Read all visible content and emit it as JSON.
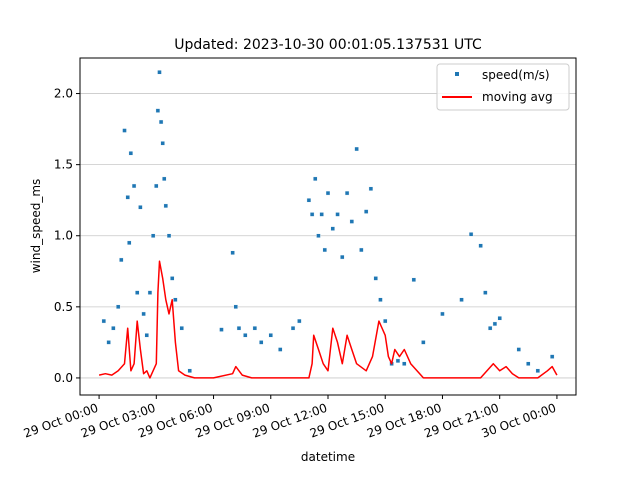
{
  "chart_data": {
    "type": "scatter",
    "title": "Updated: 2023-10-30 00:01:05.137531 UTC",
    "xlabel": "datetime",
    "ylabel": "wind_speed_ms",
    "xlim": [
      "2023-10-28T23:00:00",
      "2023-10-30T01:00:00"
    ],
    "ylim": [
      -0.12,
      2.25
    ],
    "grid": "y",
    "legend_position": "top-right",
    "x_ticks": [
      {
        "t": "2023-10-29T00:00:00",
        "label": "29 Oct 00:00"
      },
      {
        "t": "2023-10-29T03:00:00",
        "label": "29 Oct 03:00"
      },
      {
        "t": "2023-10-29T06:00:00",
        "label": "29 Oct 06:00"
      },
      {
        "t": "2023-10-29T09:00:00",
        "label": "29 Oct 09:00"
      },
      {
        "t": "2023-10-29T12:00:00",
        "label": "29 Oct 12:00"
      },
      {
        "t": "2023-10-29T15:00:00",
        "label": "29 Oct 15:00"
      },
      {
        "t": "2023-10-29T18:00:00",
        "label": "29 Oct 18:00"
      },
      {
        "t": "2023-10-29T21:00:00",
        "label": "29 Oct 21:00"
      },
      {
        "t": "2023-10-30T00:00:00",
        "label": "30 Oct 00:00"
      }
    ],
    "y_ticks": [
      {
        "v": 0.0,
        "label": "0.0"
      },
      {
        "v": 0.5,
        "label": "0.5"
      },
      {
        "v": 1.0,
        "label": "1.0"
      },
      {
        "v": 1.5,
        "label": "1.5"
      },
      {
        "v": 2.0,
        "label": "2.0"
      }
    ],
    "series": [
      {
        "name": "speed(m/s)",
        "kind": "scatter",
        "color": "#1f77b4",
        "x": [
          "2023-10-29T00:15:00",
          "2023-10-29T00:30:00",
          "2023-10-29T00:45:00",
          "2023-10-29T01:00:00",
          "2023-10-29T01:10:00",
          "2023-10-29T01:20:00",
          "2023-10-29T01:30:00",
          "2023-10-29T01:35:00",
          "2023-10-29T01:40:00",
          "2023-10-29T01:50:00",
          "2023-10-29T02:00:00",
          "2023-10-29T02:10:00",
          "2023-10-29T02:20:00",
          "2023-10-29T02:30:00",
          "2023-10-29T02:40:00",
          "2023-10-29T02:50:00",
          "2023-10-29T03:00:00",
          "2023-10-29T03:05:00",
          "2023-10-29T03:10:00",
          "2023-10-29T03:15:00",
          "2023-10-29T03:20:00",
          "2023-10-29T03:25:00",
          "2023-10-29T03:30:00",
          "2023-10-29T03:40:00",
          "2023-10-29T03:50:00",
          "2023-10-29T04:00:00",
          "2023-10-29T04:20:00",
          "2023-10-29T04:45:00",
          "2023-10-29T06:25:00",
          "2023-10-29T07:00:00",
          "2023-10-29T07:10:00",
          "2023-10-29T07:20:00",
          "2023-10-29T07:40:00",
          "2023-10-29T08:10:00",
          "2023-10-29T08:30:00",
          "2023-10-29T09:00:00",
          "2023-10-29T09:30:00",
          "2023-10-29T10:10:00",
          "2023-10-29T10:30:00",
          "2023-10-29T11:00:00",
          "2023-10-29T11:10:00",
          "2023-10-29T11:20:00",
          "2023-10-29T11:30:00",
          "2023-10-29T11:40:00",
          "2023-10-29T11:50:00",
          "2023-10-29T12:00:00",
          "2023-10-29T12:15:00",
          "2023-10-29T12:30:00",
          "2023-10-29T12:45:00",
          "2023-10-29T13:00:00",
          "2023-10-29T13:15:00",
          "2023-10-29T13:30:00",
          "2023-10-29T13:45:00",
          "2023-10-29T14:00:00",
          "2023-10-29T14:15:00",
          "2023-10-29T14:30:00",
          "2023-10-29T14:45:00",
          "2023-10-29T15:00:00",
          "2023-10-29T15:20:00",
          "2023-10-29T15:40:00",
          "2023-10-29T16:00:00",
          "2023-10-29T16:30:00",
          "2023-10-29T17:00:00",
          "2023-10-29T18:00:00",
          "2023-10-29T19:00:00",
          "2023-10-29T19:30:00",
          "2023-10-29T20:00:00",
          "2023-10-29T20:15:00",
          "2023-10-29T20:30:00",
          "2023-10-29T20:45:00",
          "2023-10-29T21:00:00",
          "2023-10-29T22:00:00",
          "2023-10-29T22:30:00",
          "2023-10-29T23:00:00",
          "2023-10-29T23:45:00"
        ],
        "y": [
          0.4,
          0.25,
          0.35,
          0.5,
          0.83,
          1.74,
          1.27,
          0.95,
          1.58,
          1.35,
          0.6,
          1.2,
          0.45,
          0.3,
          0.6,
          1.0,
          1.35,
          1.88,
          2.15,
          1.8,
          1.65,
          1.4,
          1.21,
          1.0,
          0.7,
          0.55,
          0.35,
          0.05,
          0.34,
          0.88,
          0.5,
          0.35,
          0.3,
          0.35,
          0.25,
          0.3,
          0.2,
          0.35,
          0.4,
          1.25,
          1.15,
          1.4,
          1.0,
          1.15,
          0.9,
          1.3,
          1.05,
          1.15,
          0.85,
          1.3,
          1.1,
          1.61,
          0.9,
          1.17,
          1.33,
          0.7,
          0.55,
          0.4,
          0.1,
          0.12,
          0.1,
          0.69,
          0.25,
          0.45,
          0.55,
          1.01,
          0.93,
          0.6,
          0.35,
          0.38,
          0.42,
          0.2,
          0.1,
          0.05,
          0.15
        ]
      },
      {
        "name": "moving avg",
        "kind": "line",
        "color": "#ff0000",
        "x": [
          "2023-10-29T00:00:00",
          "2023-10-29T00:20:00",
          "2023-10-29T00:40:00",
          "2023-10-29T01:00:00",
          "2023-10-29T01:20:00",
          "2023-10-29T01:30:00",
          "2023-10-29T01:40:00",
          "2023-10-29T01:50:00",
          "2023-10-29T02:00:00",
          "2023-10-29T02:10:00",
          "2023-10-29T02:20:00",
          "2023-10-29T02:30:00",
          "2023-10-29T02:40:00",
          "2023-10-29T02:50:00",
          "2023-10-29T03:00:00",
          "2023-10-29T03:05:00",
          "2023-10-29T03:10:00",
          "2023-10-29T03:20:00",
          "2023-10-29T03:30:00",
          "2023-10-29T03:40:00",
          "2023-10-29T03:50:00",
          "2023-10-29T04:00:00",
          "2023-10-29T04:10:00",
          "2023-10-29T04:30:00",
          "2023-10-29T05:00:00",
          "2023-10-29T06:00:00",
          "2023-10-29T07:00:00",
          "2023-10-29T07:10:00",
          "2023-10-29T07:30:00",
          "2023-10-29T08:00:00",
          "2023-10-29T09:00:00",
          "2023-10-29T10:00:00",
          "2023-10-29T11:00:00",
          "2023-10-29T11:10:00",
          "2023-10-29T11:15:00",
          "2023-10-29T11:30:00",
          "2023-10-29T11:45:00",
          "2023-10-29T12:00:00",
          "2023-10-29T12:15:00",
          "2023-10-29T12:30:00",
          "2023-10-29T12:45:00",
          "2023-10-29T13:00:00",
          "2023-10-29T13:15:00",
          "2023-10-29T13:30:00",
          "2023-10-29T14:00:00",
          "2023-10-29T14:20:00",
          "2023-10-29T14:40:00",
          "2023-10-29T15:00:00",
          "2023-10-29T15:10:00",
          "2023-10-29T15:20:00",
          "2023-10-29T15:30:00",
          "2023-10-29T15:45:00",
          "2023-10-29T16:00:00",
          "2023-10-29T16:20:00",
          "2023-10-29T16:40:00",
          "2023-10-29T17:00:00",
          "2023-10-29T18:00:00",
          "2023-10-29T19:00:00",
          "2023-10-29T20:00:00",
          "2023-10-29T20:20:00",
          "2023-10-29T20:40:00",
          "2023-10-29T21:00:00",
          "2023-10-29T21:20:00",
          "2023-10-29T21:40:00",
          "2023-10-29T22:00:00",
          "2023-10-29T23:00:00",
          "2023-10-29T23:30:00",
          "2023-10-29T23:45:00",
          "2023-10-30T00:00:00"
        ],
        "y": [
          0.02,
          0.03,
          0.02,
          0.05,
          0.1,
          0.35,
          0.05,
          0.1,
          0.4,
          0.2,
          0.03,
          0.05,
          0.0,
          0.05,
          0.1,
          0.6,
          0.82,
          0.7,
          0.55,
          0.45,
          0.55,
          0.25,
          0.05,
          0.02,
          0.0,
          0.0,
          0.03,
          0.08,
          0.02,
          0.0,
          0.0,
          0.0,
          0.0,
          0.1,
          0.3,
          0.2,
          0.1,
          0.05,
          0.35,
          0.25,
          0.1,
          0.3,
          0.2,
          0.1,
          0.05,
          0.15,
          0.4,
          0.3,
          0.15,
          0.1,
          0.2,
          0.15,
          0.2,
          0.1,
          0.05,
          0.0,
          0.0,
          0.0,
          0.0,
          0.05,
          0.1,
          0.05,
          0.08,
          0.03,
          0.0,
          0.0,
          0.05,
          0.08,
          0.02
        ]
      }
    ]
  }
}
